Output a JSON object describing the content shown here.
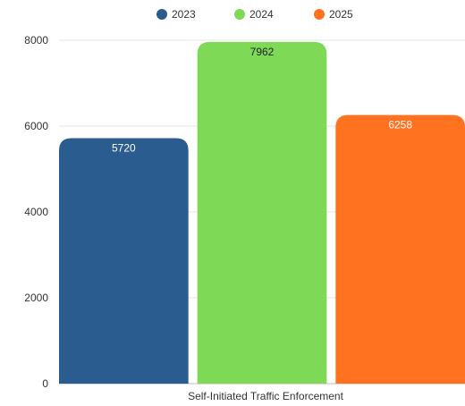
{
  "chart_data": {
    "type": "bar",
    "categories": [
      "Self-Initiated Traffic Enforcement"
    ],
    "series": [
      {
        "name": "2023",
        "values": [
          5720
        ],
        "color": "#2b5c8f",
        "label_color": "#ffffff"
      },
      {
        "name": "2024",
        "values": [
          7962
        ],
        "color": "#7ed957",
        "label_color": "#222222"
      },
      {
        "name": "2025",
        "values": [
          6258
        ],
        "color": "#ff7220",
        "label_color": "#ffffff"
      }
    ],
    "y_ticks": [
      "0",
      "2000",
      "4000",
      "6000",
      "8000"
    ],
    "ylim": [
      0,
      8000
    ],
    "grid": true,
    "legend_position": "top-center",
    "title": "",
    "xlabel": "",
    "ylabel": ""
  }
}
